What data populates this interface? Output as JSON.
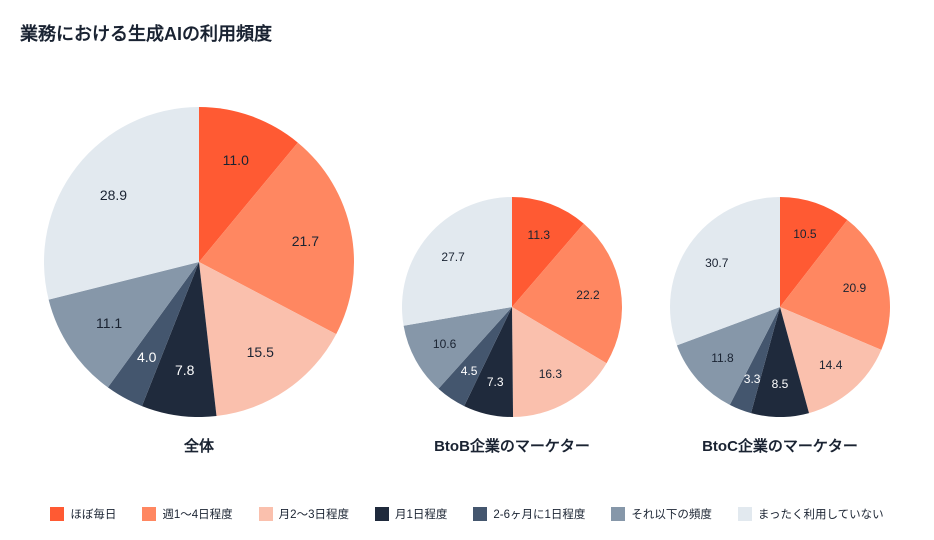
{
  "title": "業務における生成AIの利用頻度",
  "legend": [
    {
      "label": "ほぼ毎日",
      "color": "#ff5a33"
    },
    {
      "label": "週1～4日程度",
      "color": "#ff8761"
    },
    {
      "label": "月2～3日程度",
      "color": "#fac0ad"
    },
    {
      "label": "月1日程度",
      "color": "#1f2a3c"
    },
    {
      "label": "2-6ヶ月に1日程度",
      "color": "#44566e"
    },
    {
      "label": "それ以下の頻度",
      "color": "#8697a9"
    },
    {
      "label": "まったく利用していない",
      "color": "#e2e9ef"
    }
  ],
  "charts": [
    {
      "caption": "全体",
      "radius": 155,
      "label_offset": 0.7,
      "label_fontsize": 14,
      "slices": [
        {
          "value": 11.0,
          "color": "#ff5a33",
          "label": "11.0"
        },
        {
          "value": 21.7,
          "color": "#ff8761",
          "label": "21.7"
        },
        {
          "value": 15.5,
          "color": "#fac0ad",
          "label": "15.5"
        },
        {
          "value": 7.8,
          "color": "#1f2a3c",
          "label": "7.8",
          "label_color": "#ffffff"
        },
        {
          "value": 4.0,
          "color": "#44566e",
          "label": "4.0",
          "label_color": "#ffffff"
        },
        {
          "value": 11.1,
          "color": "#8697a9",
          "label": "11.1"
        },
        {
          "value": 28.9,
          "color": "#e2e9ef",
          "label": "28.9"
        }
      ]
    },
    {
      "caption": "BtoB企業のマーケター",
      "radius": 110,
      "label_offset": 0.7,
      "label_fontsize": 12,
      "slices": [
        {
          "value": 11.3,
          "color": "#ff5a33",
          "label": "11.3"
        },
        {
          "value": 22.2,
          "color": "#ff8761",
          "label": "22.2"
        },
        {
          "value": 16.3,
          "color": "#fac0ad",
          "label": "16.3"
        },
        {
          "value": 7.3,
          "color": "#1f2a3c",
          "label": "7.3",
          "label_color": "#ffffff"
        },
        {
          "value": 4.5,
          "color": "#44566e",
          "label": "4.5",
          "label_color": "#ffffff"
        },
        {
          "value": 10.6,
          "color": "#8697a9",
          "label": "10.6"
        },
        {
          "value": 27.7,
          "color": "#e2e9ef",
          "label": "27.7"
        }
      ]
    },
    {
      "caption": "BtoC企業のマーケター",
      "radius": 110,
      "label_offset": 0.7,
      "label_fontsize": 12,
      "slices": [
        {
          "value": 10.5,
          "color": "#ff5a33",
          "label": "10.5"
        },
        {
          "value": 20.9,
          "color": "#ff8761",
          "label": "20.9"
        },
        {
          "value": 14.4,
          "color": "#fac0ad",
          "label": "14.4"
        },
        {
          "value": 8.5,
          "color": "#1f2a3c",
          "label": "8.5",
          "label_color": "#ffffff"
        },
        {
          "value": 3.3,
          "color": "#44566e",
          "label": "3.3",
          "label_color": "#ffffff"
        },
        {
          "value": 11.8,
          "color": "#8697a9",
          "label": "11.8"
        },
        {
          "value": 30.7,
          "color": "#e2e9ef",
          "label": "30.7"
        }
      ]
    }
  ],
  "background_color": "#ffffff"
}
